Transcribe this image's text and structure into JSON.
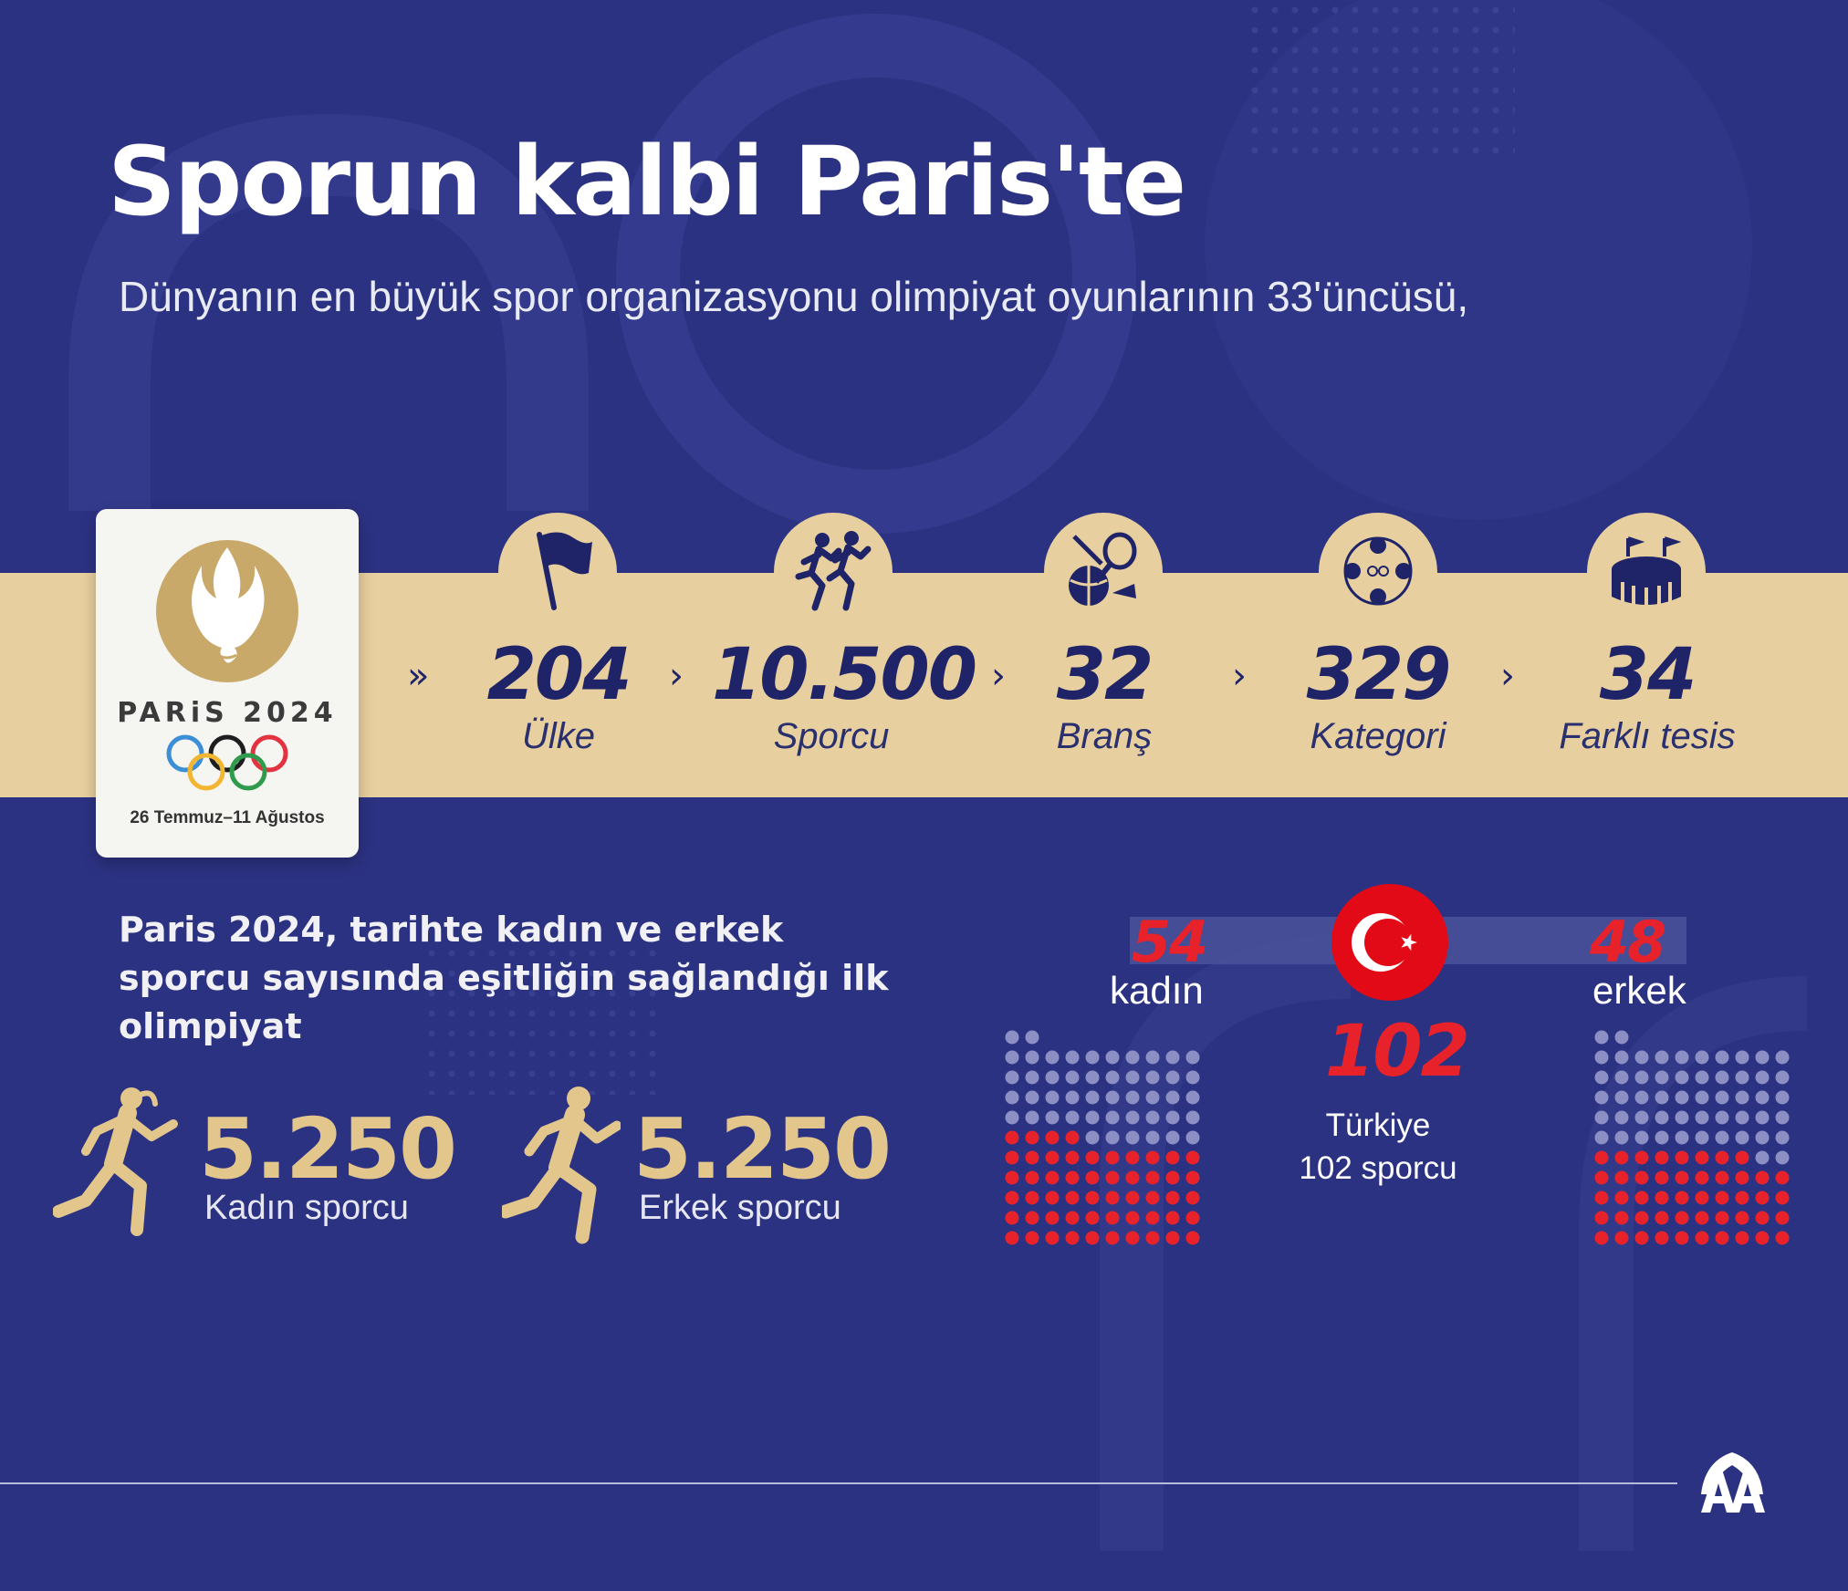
{
  "header": {
    "title": "Sporun kalbi Paris'te",
    "subtitle": "Dünyanın en büyük spor organizasyonu olimpiyat oyunlarının 33'üncüsü,"
  },
  "logo": {
    "wordmark": "PARiS 2024",
    "dates": "26 Temmuz–11 Ağustos"
  },
  "stats": [
    {
      "value": "204",
      "label": "Ülke",
      "icon": "flag-icon"
    },
    {
      "value": "10.500",
      "label": "Sporcu",
      "icon": "runners-icon"
    },
    {
      "value": "32",
      "label": "Branş",
      "icon": "sports-equipment-icon"
    },
    {
      "value": "329",
      "label": "Kategori",
      "icon": "sport-categories-icon"
    },
    {
      "value": "34",
      "label": "Farklı tesis",
      "icon": "stadium-icon"
    }
  ],
  "equality": {
    "text": "Paris 2024, tarihte kadın ve erkek sporcu sayısında eşitliğin sağlandığı ilk olimpiyat",
    "women_value": "5.250",
    "women_label": "Kadın sporcu",
    "men_value": "5.250",
    "men_label": "Erkek sporcu"
  },
  "turkiye": {
    "women_value": "54",
    "women_label": "kadın",
    "men_value": "48",
    "men_label": "erkek",
    "total_value": "102",
    "caption_line1": "Türkiye",
    "caption_line2": "102 sporcu",
    "women_count": 54,
    "men_count": 48
  },
  "colors": {
    "background": "#2c3282",
    "gold": "#e7cf9f",
    "navy": "#1f2468",
    "red": "#e8222a"
  }
}
